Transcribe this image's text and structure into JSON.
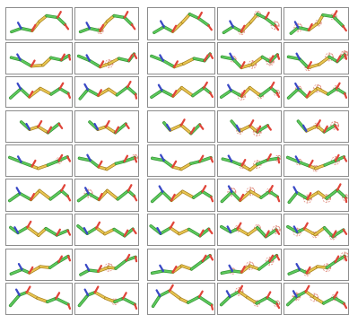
{
  "figure": {
    "background": "#ffffff",
    "panel_border_color": "#8c8c8c",
    "stick_colors": {
      "carbon_light": "#5cc95c",
      "carbon_dark": "#2f8f2f",
      "sulfur_light": "#e8c552",
      "sulfur_dark": "#a07a16",
      "nitrogen": "#3a49c6",
      "oxygen": "#e0453a",
      "density_mesh": "#e08a7c"
    },
    "groups": [
      "without-density",
      "with-density"
    ],
    "rows": [
      {
        "motif": "wave-up",
        "density": [
          0,
          1,
          0,
          3,
          3
        ]
      },
      {
        "motif": "dip",
        "density": [
          0,
          1,
          0,
          4,
          4
        ]
      },
      {
        "motif": "zigzag",
        "density": [
          0,
          0,
          0,
          3,
          3
        ]
      },
      {
        "motif": "short-zigzag",
        "density": [
          0,
          0,
          0,
          3,
          3
        ]
      },
      {
        "motif": "valley",
        "density": [
          1,
          1,
          0,
          3,
          3
        ]
      },
      {
        "motif": "zigzag",
        "density": [
          0,
          1,
          0,
          3,
          3
        ]
      },
      {
        "motif": "long-zigzag",
        "density": [
          0,
          0,
          0,
          3,
          3
        ]
      },
      {
        "motif": "up-right",
        "density": [
          0,
          1,
          0,
          3,
          3
        ]
      },
      {
        "motif": "peak",
        "density": [
          0,
          1,
          0,
          3,
          4
        ]
      }
    ]
  }
}
